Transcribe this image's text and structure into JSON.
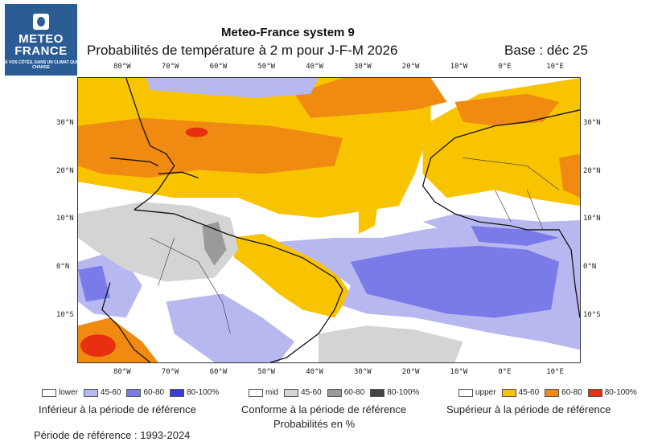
{
  "logo": {
    "name1": "METEO",
    "name2": "FRANCE",
    "tagline": "À VOS CÔTÉS, DANS UN CLIMAT QUI CHANGE"
  },
  "header": {
    "system": "Meteo-France system 9",
    "title": "Probabilités de température à 2 m pour J-F-M 2026",
    "base": "Base : déc 25"
  },
  "axes": {
    "lon_ticks": [
      "80°W",
      "70°W",
      "60°W",
      "50°W",
      "40°W",
      "30°W",
      "20°W",
      "10°W",
      "0°E",
      "10°E"
    ],
    "lat_ticks": [
      "30°N",
      "20°N",
      "10°N",
      "0°N",
      "10°S"
    ]
  },
  "legend": {
    "lower": {
      "items": [
        "lower",
        "45-60",
        "60-80",
        "80-100%"
      ],
      "colors": [
        "#ffffff",
        "#b8b8f0",
        "#7a7ae8",
        "#3a3ae0"
      ],
      "caption": "Inférieur à la période de référence"
    },
    "mid": {
      "items": [
        "mid",
        "45-60",
        "60-80",
        "80-100%"
      ],
      "colors": [
        "#ffffff",
        "#d4d4d4",
        "#9a9a9a",
        "#444444"
      ],
      "caption": "Conforme à la période de référence",
      "unit": "Probabilités en %"
    },
    "upper": {
      "items": [
        "upper",
        "45-60",
        "60-80",
        "80-100%"
      ],
      "colors": [
        "#ffffff",
        "#f8c400",
        "#f08a10",
        "#e83010"
      ],
      "caption": "Supérieur à la période de référence"
    }
  },
  "reference_period": "Période de référence : 1993-2024"
}
